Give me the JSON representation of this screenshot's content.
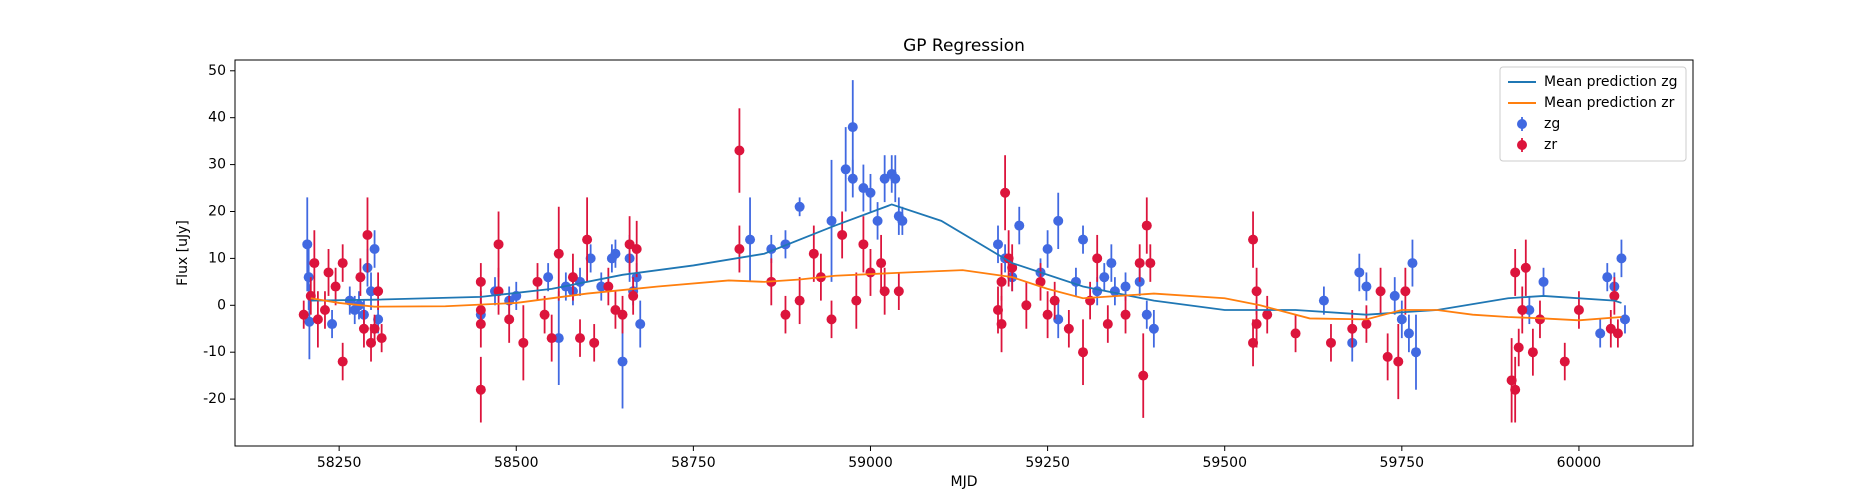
{
  "chart_data": {
    "type": "errorbar",
    "title": "GP Regression",
    "x_label": "MJD",
    "y_label": "Flux [uJy]",
    "xlim": [
      58103,
      60161
    ],
    "ylim": [
      -30,
      52.3
    ],
    "xticks": [
      58250,
      58500,
      58750,
      59000,
      59250,
      59500,
      59750,
      60000
    ],
    "yticks": [
      -20,
      -10,
      0,
      10,
      20,
      30,
      40,
      50
    ],
    "legend": "upper right",
    "series": [
      {
        "name": "Mean prediction zg",
        "color": "#1f77b4",
        "type": "line",
        "x": [
          58210,
          58300,
          58450,
          58550,
          58650,
          58750,
          58850,
          58950,
          59030,
          59100,
          59200,
          59300,
          59400,
          59500,
          59600,
          59700,
          59800,
          59900,
          59950,
          60050,
          60060
        ],
        "values": [
          1,
          1.2,
          1.8,
          3.5,
          6.5,
          8.5,
          11,
          17,
          21.5,
          18,
          9,
          4,
          1,
          -1,
          -1,
          -2,
          -1,
          1.5,
          2,
          1,
          0.5
        ]
      },
      {
        "name": "Mean prediction zr",
        "color": "#ff7f0e",
        "type": "line",
        "x": [
          58210,
          58250,
          58300,
          58400,
          58500,
          58600,
          58700,
          58800,
          58850,
          58900,
          58950,
          59050,
          59130,
          59200,
          59250,
          59300,
          59400,
          59500,
          59550,
          59620,
          59700,
          59750,
          59800,
          59850,
          59900,
          59950,
          60000,
          60060
        ],
        "values": [
          1.5,
          0.5,
          -0.3,
          -0.2,
          0.5,
          2.5,
          4,
          5.3,
          5,
          5.5,
          6.3,
          7,
          7.5,
          6,
          3.5,
          1.5,
          2.5,
          1.5,
          0,
          -2.8,
          -3,
          -1,
          -1,
          -2,
          -2.5,
          -2.8,
          -3.2,
          -2.5
        ]
      },
      {
        "name": "zg",
        "color": "#4169e1",
        "type": "errorbar",
        "x": [
          58205,
          58207,
          58208,
          58240,
          58265,
          58272,
          58278,
          58285,
          58290,
          58295,
          58300,
          58305,
          58450,
          58470,
          58490,
          58500,
          58545,
          58560,
          58570,
          58580,
          58590,
          58605,
          58620,
          58635,
          58640,
          58650,
          58660,
          58665,
          58675,
          58670,
          58830,
          58860,
          58880,
          58900,
          58945,
          58965,
          58975,
          58975,
          58990,
          59000,
          59010,
          59020,
          59030,
          59035,
          59040,
          59045,
          59180,
          59190,
          59200,
          59210,
          59240,
          59250,
          59265,
          59265,
          59290,
          59300,
          59320,
          59330,
          59340,
          59345,
          59360,
          59380,
          59390,
          59400,
          59640,
          59680,
          59690,
          59700,
          59740,
          59750,
          59760,
          59770,
          59765,
          60030,
          60040,
          60050,
          60060,
          60065,
          59930,
          59950
        ],
        "values": [
          13,
          6,
          -3.5,
          -4,
          1,
          -1,
          0,
          -2,
          8,
          3,
          12,
          -3,
          -2,
          3,
          1,
          2,
          6,
          -7,
          4,
          3,
          5,
          10,
          4,
          10,
          11,
          -12,
          10,
          3,
          -4,
          6,
          14,
          12,
          13,
          21,
          18,
          29,
          38,
          27,
          25,
          24,
          18,
          27,
          28,
          27,
          19,
          18,
          13,
          10,
          6,
          17,
          7,
          12,
          -3,
          18,
          5,
          14,
          3,
          6,
          9,
          3,
          4,
          5,
          -2,
          -5,
          1,
          -8,
          7,
          4,
          2,
          -3,
          -6,
          -10,
          9,
          -6,
          6,
          4,
          10,
          -3,
          -1,
          5
        ],
        "errors": [
          10,
          7,
          8,
          3,
          3,
          3,
          3,
          3,
          4,
          4,
          4,
          3,
          3,
          3,
          3,
          3,
          3,
          10,
          3,
          3,
          3,
          3,
          3,
          3,
          3,
          10,
          5,
          3,
          5,
          3,
          9,
          3,
          3,
          2,
          13,
          9,
          10,
          4,
          5,
          4,
          4,
          5,
          4,
          5,
          4,
          3,
          4,
          3,
          3,
          4,
          3,
          4,
          4,
          6,
          3,
          3,
          3,
          3,
          4,
          3,
          3,
          3,
          3,
          4,
          3,
          4,
          4,
          3,
          4,
          4,
          4,
          8,
          5,
          3,
          3,
          3,
          4,
          3,
          3,
          3
        ]
      },
      {
        "name": "zr",
        "color": "#dc143c",
        "type": "errorbar",
        "x": [
          58200,
          58210,
          58215,
          58220,
          58230,
          58235,
          58245,
          58255,
          58255,
          58280,
          58285,
          58290,
          58295,
          58300,
          58310,
          58305,
          58450,
          58450,
          58450,
          58450,
          58475,
          58475,
          58490,
          58510,
          58530,
          58540,
          58550,
          58560,
          58580,
          58590,
          58600,
          58610,
          58630,
          58640,
          58650,
          58660,
          58665,
          58670,
          58815,
          58815,
          58860,
          58880,
          58900,
          58920,
          58930,
          58945,
          58960,
          58980,
          58990,
          59000,
          59015,
          59020,
          59040,
          59180,
          59185,
          59190,
          59195,
          59185,
          59200,
          59220,
          59240,
          59250,
          59260,
          59280,
          59300,
          59310,
          59320,
          59335,
          59360,
          59380,
          59385,
          59390,
          59395,
          59540,
          59540,
          59545,
          59545,
          59560,
          59600,
          59650,
          59680,
          59700,
          59720,
          59730,
          59745,
          59755,
          59905,
          59910,
          59910,
          59915,
          59920,
          59925,
          59935,
          59945,
          59980,
          60000,
          60045,
          60050,
          60055
        ],
        "values": [
          -2,
          2,
          9,
          -3,
          -1,
          7,
          4,
          9,
          -12,
          6,
          -5,
          15,
          -8,
          -5,
          -7,
          3,
          -18,
          5,
          -4,
          -1,
          13,
          3,
          -3,
          -8,
          5,
          -2,
          -7,
          11,
          6,
          -7,
          14,
          -8,
          4,
          -1,
          -2,
          13,
          2,
          12,
          33,
          12,
          5,
          -2,
          1,
          11,
          6,
          -3,
          15,
          1,
          13,
          7,
          9,
          3,
          3,
          -1,
          -4,
          24,
          10,
          5,
          8,
          0,
          5,
          -2,
          1,
          -5,
          -10,
          1,
          10,
          -4,
          -2,
          9,
          -15,
          17,
          9,
          14,
          -8,
          3,
          -4,
          -2,
          -6,
          -8,
          -5,
          -4,
          3,
          -11,
          -12,
          3,
          -16,
          -18,
          7,
          -9,
          -1,
          8,
          -10,
          -3,
          -12,
          -1,
          -5,
          2,
          -6
        ],
        "errors": [
          3,
          4,
          7,
          6,
          4,
          5,
          4,
          4,
          4,
          4,
          4,
          8,
          4,
          3,
          3,
          4,
          7,
          4,
          5,
          4,
          7,
          5,
          5,
          8,
          4,
          4,
          5,
          10,
          5,
          4,
          9,
          4,
          4,
          4,
          4,
          6,
          4,
          6,
          9,
          5,
          5,
          4,
          5,
          6,
          5,
          4,
          5,
          6,
          6,
          5,
          6,
          5,
          4,
          5,
          6,
          8,
          6,
          4,
          5,
          5,
          4,
          5,
          4,
          4,
          7,
          4,
          5,
          4,
          4,
          4,
          9,
          6,
          4,
          6,
          5,
          5,
          5,
          4,
          4,
          4,
          4,
          4,
          5,
          5,
          8,
          5,
          9,
          7,
          5,
          4,
          5,
          6,
          5,
          4,
          4,
          4,
          4,
          4,
          3
        ]
      }
    ]
  }
}
